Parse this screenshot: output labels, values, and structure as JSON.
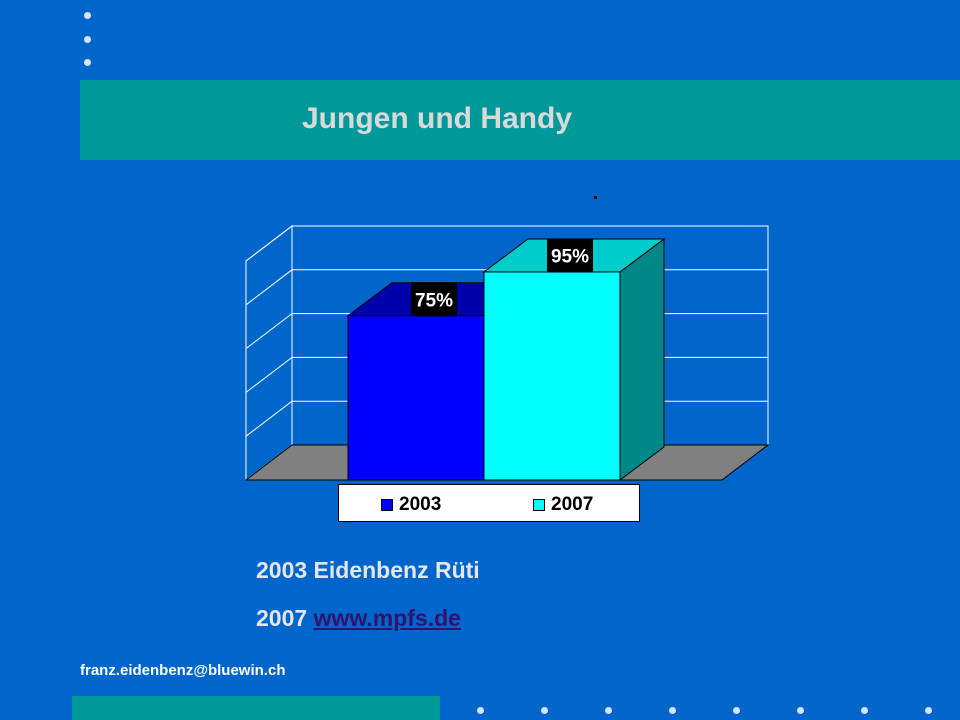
{
  "slide": {
    "title": "Jungen und Handy",
    "source_2003": "2003 Eidenbenz Rüti",
    "source_2007_year": "2007",
    "source_2007_link": "www.mpfs.de",
    "email": "franz.eidenbenz@bluewin.ch"
  },
  "colors": {
    "background": "#0066cc",
    "band": "#009999",
    "bar_2003": "#0000ff",
    "bar_2007": "#00ffff"
  },
  "chart_data": {
    "type": "bar",
    "categories": [
      ""
    ],
    "series": [
      {
        "name": "2003",
        "values": [
          75
        ],
        "label": "75%",
        "color": "#0000ff"
      },
      {
        "name": "2007",
        "values": [
          95
        ],
        "label": "95%",
        "color": "#00ffff"
      }
    ],
    "ylim": [
      0,
      100
    ],
    "grid": true,
    "legend": "bottom"
  }
}
